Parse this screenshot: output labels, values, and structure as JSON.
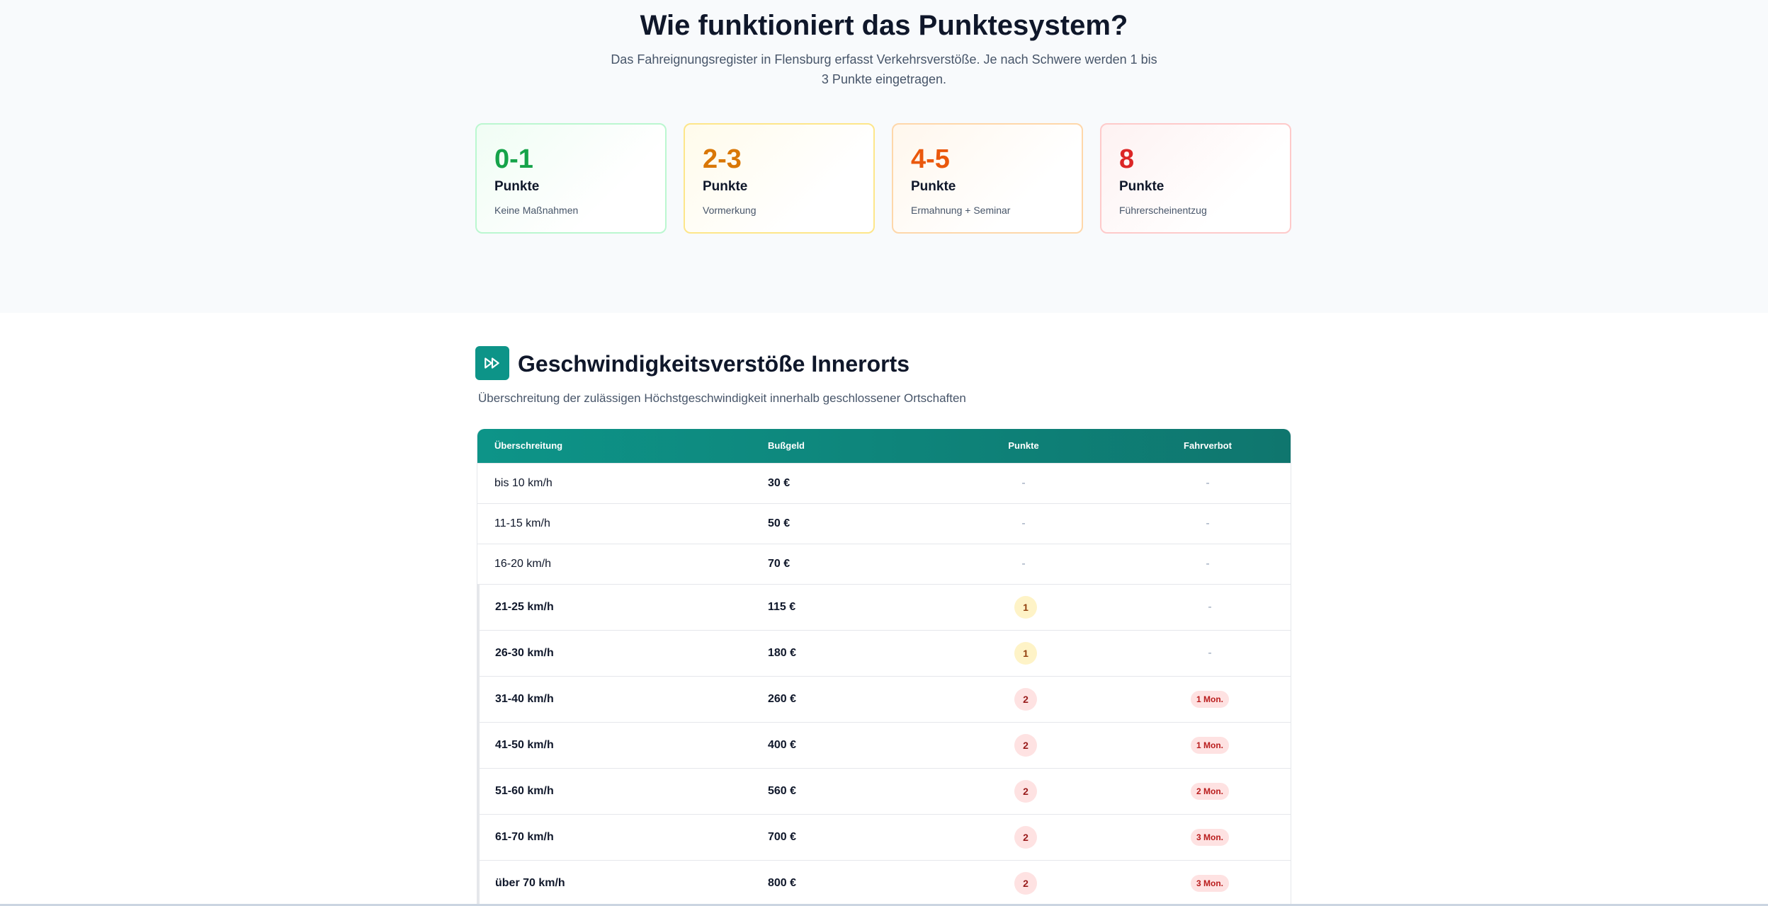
{
  "intro": {
    "title": "Wie funktioniert das Punktesystem?",
    "subtitle": "Das Fahreignungsregister in Flensburg erfasst Verkehrsverstöße. Je nach Schwere werden 1 bis 3 Punkte eingetragen."
  },
  "levels": [
    {
      "range": "0-1",
      "unit": "Punkte",
      "desc": "Keine Maßnahmen",
      "color": "#16a34a"
    },
    {
      "range": "2-3",
      "unit": "Punkte",
      "desc": "Vormerkung",
      "color": "#d97706"
    },
    {
      "range": "4-5",
      "unit": "Punkte",
      "desc": "Ermahnung + Seminar",
      "color": "#ea580c"
    },
    {
      "range": "8",
      "unit": "Punkte",
      "desc": "Führerscheinentzug",
      "color": "#dc2626"
    }
  ],
  "section": {
    "icon": "fast-forward-icon",
    "title": "Geschwindigkeitsverstöße Innerorts",
    "subtitle": "Überschreitung der zulässigen Höchstgeschwindigkeit innerhalb geschlossener Ortschaften"
  },
  "table": {
    "headers": [
      "Überschreitung",
      "Bußgeld",
      "Punkte",
      "Fahrverbot"
    ],
    "rows": [
      {
        "speed": "bis 10 km/h",
        "fine": "30 €",
        "points": "-",
        "ban": "-"
      },
      {
        "speed": "11-15 km/h",
        "fine": "50 €",
        "points": "-",
        "ban": "-"
      },
      {
        "speed": "16-20 km/h",
        "fine": "70 €",
        "points": "-",
        "ban": "-"
      },
      {
        "speed": "21-25 km/h",
        "fine": "115 €",
        "points": "1",
        "ban": "-"
      },
      {
        "speed": "26-30 km/h",
        "fine": "180 €",
        "points": "1",
        "ban": "-"
      },
      {
        "speed": "31-40 km/h",
        "fine": "260 €",
        "points": "2",
        "ban": "1 Mon."
      },
      {
        "speed": "41-50 km/h",
        "fine": "400 €",
        "points": "2",
        "ban": "1 Mon."
      },
      {
        "speed": "51-60 km/h",
        "fine": "560 €",
        "points": "2",
        "ban": "2 Mon."
      },
      {
        "speed": "61-70 km/h",
        "fine": "700 €",
        "points": "2",
        "ban": "3 Mon."
      },
      {
        "speed": "über 70 km/h",
        "fine": "800 €",
        "points": "2",
        "ban": "3 Mon."
      }
    ]
  }
}
